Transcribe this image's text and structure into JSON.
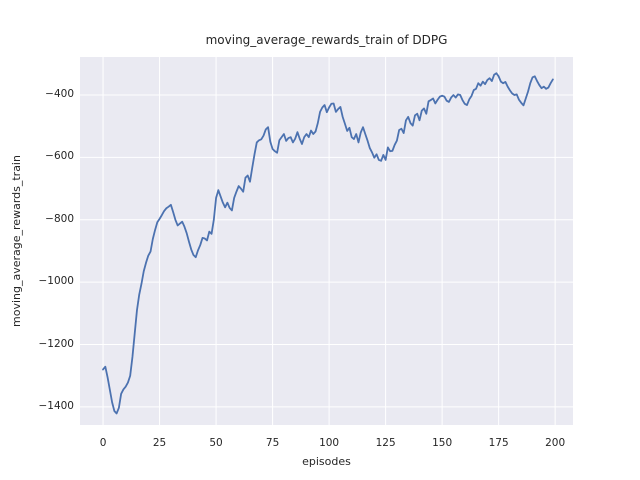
{
  "chart_data": {
    "type": "line",
    "title": "moving_average_rewards_train of DDPG",
    "xlabel": "episodes",
    "ylabel": "moving_average_rewards_train",
    "grid": true,
    "legend": null,
    "xlim": [
      -10.2,
      207.9
    ],
    "ylim": [
      -1458,
      -278
    ],
    "xticks": {
      "values": [
        0,
        25,
        50,
        75,
        100,
        125,
        150,
        175,
        200
      ],
      "labels": [
        "0",
        "25",
        "50",
        "75",
        "100",
        "125",
        "150",
        "175",
        "200"
      ]
    },
    "yticks": {
      "values": [
        -400,
        -600,
        -800,
        -1000,
        -1200,
        -1400
      ],
      "labels": [
        "−400",
        "−600",
        "−800",
        "−1000",
        "−1200",
        "−1400"
      ]
    },
    "x_start": 0,
    "x_step": 1,
    "series": [
      {
        "name": "moving_average_rewards_train",
        "color": "#4c72b0",
        "values": [
          -1280,
          -1271,
          -1305,
          -1345,
          -1385,
          -1413,
          -1421,
          -1403,
          -1358,
          -1344,
          -1335,
          -1322,
          -1300,
          -1240,
          -1165,
          -1090,
          -1040,
          -1005,
          -965,
          -938,
          -915,
          -902,
          -862,
          -833,
          -808,
          -797,
          -785,
          -772,
          -763,
          -758,
          -752,
          -775,
          -800,
          -818,
          -812,
          -806,
          -822,
          -843,
          -870,
          -895,
          -913,
          -920,
          -898,
          -881,
          -858,
          -860,
          -866,
          -838,
          -845,
          -800,
          -730,
          -705,
          -725,
          -745,
          -760,
          -745,
          -762,
          -770,
          -730,
          -710,
          -692,
          -700,
          -710,
          -665,
          -658,
          -678,
          -633,
          -590,
          -552,
          -545,
          -542,
          -530,
          -510,
          -503,
          -550,
          -573,
          -580,
          -585,
          -545,
          -535,
          -525,
          -547,
          -538,
          -535,
          -552,
          -540,
          -519,
          -540,
          -557,
          -535,
          -525,
          -535,
          -514,
          -525,
          -517,
          -490,
          -454,
          -440,
          -432,
          -455,
          -440,
          -428,
          -427,
          -454,
          -445,
          -438,
          -470,
          -492,
          -515,
          -505,
          -535,
          -541,
          -525,
          -552,
          -520,
          -503,
          -525,
          -546,
          -570,
          -584,
          -601,
          -590,
          -608,
          -611,
          -592,
          -608,
          -568,
          -580,
          -579,
          -560,
          -546,
          -512,
          -508,
          -522,
          -481,
          -470,
          -490,
          -498,
          -465,
          -460,
          -481,
          -450,
          -443,
          -460,
          -420,
          -416,
          -411,
          -427,
          -415,
          -405,
          -402,
          -405,
          -418,
          -422,
          -408,
          -400,
          -408,
          -398,
          -400,
          -416,
          -428,
          -432,
          -414,
          -403,
          -384,
          -380,
          -362,
          -370,
          -357,
          -365,
          -352,
          -346,
          -355,
          -335,
          -330,
          -340,
          -357,
          -362,
          -358,
          -373,
          -385,
          -395,
          -400,
          -398,
          -415,
          -425,
          -433,
          -411,
          -389,
          -362,
          -343,
          -340,
          -355,
          -368,
          -378,
          -373,
          -380,
          -376,
          -362,
          -350
        ]
      }
    ],
    "style": {
      "fig_bg": "#ffffff",
      "plot_bg": "#eaeaf2",
      "grid_color": "#ffffff",
      "line_color": "#4c72b0",
      "text_color": "#262626"
    }
  }
}
